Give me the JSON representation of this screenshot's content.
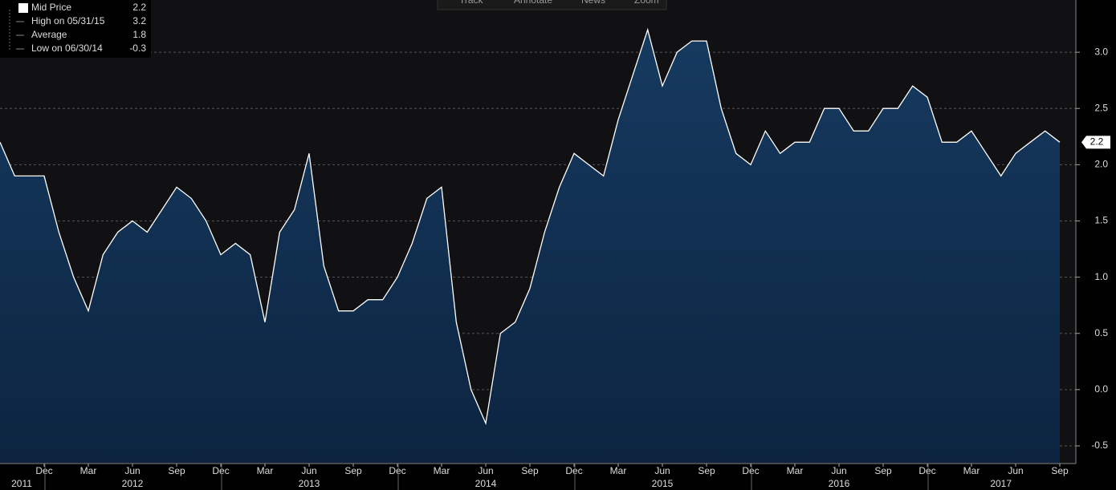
{
  "chart_data": {
    "type": "area",
    "toolbar": [
      "Track",
      "Annotate",
      "News",
      "Zoom"
    ],
    "legend": [
      {
        "label": "Mid Price",
        "value": 2.2
      },
      {
        "label": "High on 05/31/15",
        "value": 3.2
      },
      {
        "label": "Average",
        "value": 1.8
      },
      {
        "label": "Low on 06/30/14",
        "value": -0.3
      }
    ],
    "categories": [
      null,
      null,
      null,
      "Dec",
      null,
      null,
      "Mar",
      null,
      null,
      "Jun",
      null,
      null,
      "Sep",
      null,
      null,
      "Dec",
      null,
      null,
      "Mar",
      null,
      null,
      "Jun",
      null,
      null,
      "Sep",
      null,
      null,
      "Dec",
      null,
      null,
      "Mar",
      null,
      null,
      "Jun",
      null,
      null,
      "Sep",
      null,
      null,
      "Dec",
      null,
      null,
      "Mar",
      null,
      null,
      "Jun",
      null,
      null,
      "Sep",
      null,
      null,
      "Dec",
      null,
      null,
      "Mar",
      null,
      null,
      "Jun",
      null,
      null,
      "Sep",
      null,
      null,
      "Dec",
      null,
      null,
      "Mar",
      null,
      null,
      "Jun",
      null,
      null,
      "Sep"
    ],
    "year_labels": [
      null,
      "2011",
      null,
      null,
      null,
      null,
      null,
      null,
      null,
      "2012",
      null,
      null,
      null,
      null,
      null,
      null,
      null,
      null,
      null,
      null,
      null,
      "2013",
      null,
      null,
      null,
      null,
      null,
      null,
      null,
      null,
      null,
      null,
      null,
      "2014",
      null,
      null,
      null,
      null,
      null,
      null,
      null,
      null,
      null,
      null,
      null,
      "2015",
      null,
      null,
      null,
      null,
      null,
      null,
      null,
      null,
      null,
      null,
      null,
      "2016",
      null,
      null,
      null,
      null,
      null,
      null,
      null,
      null,
      null,
      null,
      "2017",
      null,
      null,
      null,
      null
    ],
    "series": [
      {
        "name": "Mid Price",
        "color": "#ffffff",
        "values": [
          2.2,
          1.9,
          1.9,
          1.9,
          1.4,
          1.0,
          0.7,
          1.2,
          1.4,
          1.5,
          1.4,
          1.6,
          1.8,
          1.7,
          1.5,
          1.2,
          1.3,
          1.2,
          0.6,
          1.4,
          1.6,
          2.1,
          1.1,
          0.7,
          0.7,
          0.8,
          0.8,
          1.0,
          1.3,
          1.7,
          1.8,
          0.6,
          0.0,
          -0.3,
          0.5,
          0.6,
          0.9,
          1.4,
          1.8,
          2.1,
          2.0,
          1.9,
          2.4,
          2.8,
          3.2,
          2.7,
          3.0,
          3.1,
          3.1,
          2.5,
          2.1,
          2.0,
          2.3,
          2.1,
          2.2,
          2.2,
          2.5,
          2.5,
          2.3,
          2.3,
          2.5,
          2.5,
          2.7,
          2.6,
          2.2,
          2.2,
          2.3,
          2.1,
          1.9,
          2.1,
          2.2,
          2.3,
          2.2
        ]
      }
    ],
    "ylim": [
      -0.65,
      3.5
    ],
    "yticks": [
      -0.5,
      {
        "value": 0,
        "label": "0.0"
      },
      0.5,
      {
        "value": 1,
        "label": "1.0"
      },
      1.5,
      {
        "value": 2,
        "label": "2.0"
      },
      2.5,
      {
        "value": 3,
        "label": "3.0"
      },
      3.5
    ],
    "grid": true
  }
}
